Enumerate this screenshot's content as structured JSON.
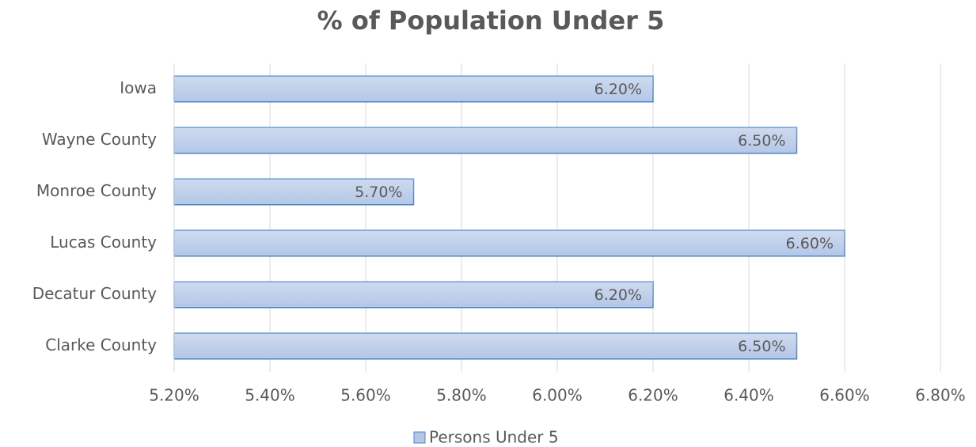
{
  "chart_data": {
    "type": "bar",
    "orientation": "horizontal",
    "title": "% of Population Under 5",
    "categories": [
      "Iowa",
      "Wayne County",
      "Monroe County",
      "Lucas County",
      "Decatur County",
      "Clarke County"
    ],
    "series": [
      {
        "name": "Persons Under 5",
        "color": "#b4c7e7",
        "edge_color": "#4a86c5",
        "values": [
          6.2,
          6.5,
          5.7,
          6.6,
          6.2,
          6.5
        ],
        "value_labels": [
          "6.20%",
          "6.50%",
          "5.70%",
          "6.60%",
          "6.20%",
          "6.50%"
        ]
      }
    ],
    "xlim": [
      5.2,
      6.8
    ],
    "xticks": [
      {
        "value": 5.2,
        "label": "5.20%"
      },
      {
        "value": 5.4,
        "label": "5.40%"
      },
      {
        "value": 5.6,
        "label": "5.60%"
      },
      {
        "value": 5.8,
        "label": "5.80%"
      },
      {
        "value": 6.0,
        "label": "6.00%"
      },
      {
        "value": 6.2,
        "label": "6.20%"
      },
      {
        "value": 6.4,
        "label": "6.40%"
      },
      {
        "value": 6.6,
        "label": "6.60%"
      },
      {
        "value": 6.8,
        "label": "6.80%"
      }
    ],
    "grid": true,
    "legend": "bottom"
  }
}
